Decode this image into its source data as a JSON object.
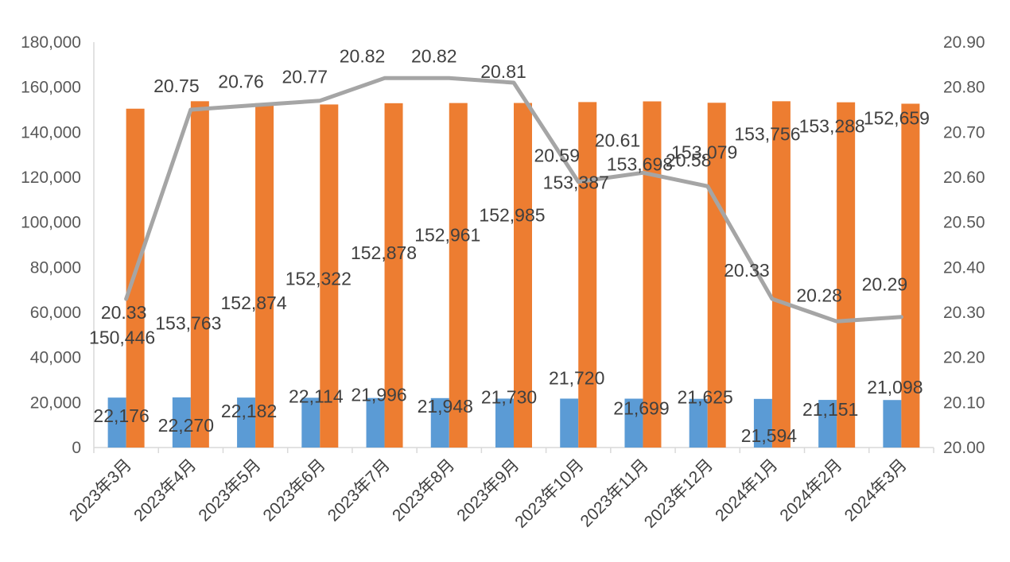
{
  "chart_data": {
    "type": "bar",
    "title": "",
    "categories": [
      "2023年3月",
      "2023年4月",
      "2023年5月",
      "2023年6月",
      "2023年7月",
      "2023年8月",
      "2023年9月",
      "2023年10月",
      "2023年11月",
      "2023年12月",
      "2024年1月",
      "2024年2月",
      "2024年3月"
    ],
    "series": [
      {
        "type": "bar",
        "axis": "left",
        "color": "#5B9BD5",
        "values": [
          22176,
          22270,
          22182,
          22114,
          21996,
          21948,
          21730,
          21720,
          21699,
          21625,
          21594,
          21151,
          21098
        ],
        "labels": [
          "22,176",
          "22,270",
          "22,182",
          "22,114",
          "21,996",
          "21,948",
          "21,730",
          "21,720",
          "21,699",
          "21,625",
          "21,594",
          "21,151",
          "21,098"
        ]
      },
      {
        "type": "bar",
        "axis": "left",
        "color": "#ED7D31",
        "values": [
          150446,
          153763,
          152874,
          152322,
          152878,
          152961,
          152985,
          153387,
          153698,
          153079,
          153756,
          153288,
          152659
        ],
        "labels": [
          "150,446",
          "153,763",
          "152,874",
          "152,322",
          "152,878",
          "152,961",
          "152,985",
          "153,387",
          "153,698",
          "153,079",
          "153,756",
          "153,288",
          "152,659"
        ]
      },
      {
        "type": "line",
        "axis": "right",
        "color": "#A5A5A5",
        "values": [
          20.33,
          20.75,
          20.76,
          20.77,
          20.82,
          20.82,
          20.81,
          20.59,
          20.61,
          20.58,
          20.33,
          20.28,
          20.29
        ],
        "labels": [
          "20.33",
          "20.75",
          "20.76",
          "20.77",
          "20.82",
          "20.82",
          "20.81",
          "20.59",
          "20.61",
          "20.58",
          "20.33",
          "20.28",
          "20.29"
        ]
      }
    ],
    "y_left": {
      "min": 0,
      "max": 180000,
      "ticks": [
        "0",
        "20,000",
        "40,000",
        "60,000",
        "80,000",
        "100,000",
        "120,000",
        "140,000",
        "160,000",
        "180,000"
      ]
    },
    "y_right": {
      "min": 20.0,
      "max": 20.9,
      "ticks": [
        "20.00",
        "20.10",
        "20.20",
        "20.30",
        "20.40",
        "20.50",
        "20.60",
        "20.70",
        "20.80",
        "20.90"
      ]
    },
    "grid": false,
    "legend": "none"
  }
}
